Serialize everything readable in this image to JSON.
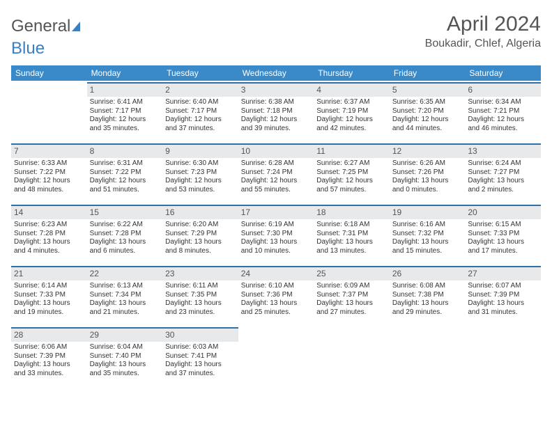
{
  "brand": {
    "part1": "General",
    "part2": "Blue"
  },
  "title": "April 2024",
  "location": "Boukadir, Chlef, Algeria",
  "day_headers": [
    "Sunday",
    "Monday",
    "Tuesday",
    "Wednesday",
    "Thursday",
    "Friday",
    "Saturday"
  ],
  "colors": {
    "header_bg": "#3a8ac9",
    "header_text": "#ffffff",
    "daynum_bg": "#e7e9eb",
    "daynum_border": "#2f6fa8",
    "text": "#333333",
    "title_text": "#555555"
  },
  "weeks": [
    [
      {
        "n": "",
        "empty": true
      },
      {
        "n": "1",
        "sunrise": "Sunrise: 6:41 AM",
        "sunset": "Sunset: 7:17 PM",
        "day1": "Daylight: 12 hours",
        "day2": "and 35 minutes."
      },
      {
        "n": "2",
        "sunrise": "Sunrise: 6:40 AM",
        "sunset": "Sunset: 7:17 PM",
        "day1": "Daylight: 12 hours",
        "day2": "and 37 minutes."
      },
      {
        "n": "3",
        "sunrise": "Sunrise: 6:38 AM",
        "sunset": "Sunset: 7:18 PM",
        "day1": "Daylight: 12 hours",
        "day2": "and 39 minutes."
      },
      {
        "n": "4",
        "sunrise": "Sunrise: 6:37 AM",
        "sunset": "Sunset: 7:19 PM",
        "day1": "Daylight: 12 hours",
        "day2": "and 42 minutes."
      },
      {
        "n": "5",
        "sunrise": "Sunrise: 6:35 AM",
        "sunset": "Sunset: 7:20 PM",
        "day1": "Daylight: 12 hours",
        "day2": "and 44 minutes."
      },
      {
        "n": "6",
        "sunrise": "Sunrise: 6:34 AM",
        "sunset": "Sunset: 7:21 PM",
        "day1": "Daylight: 12 hours",
        "day2": "and 46 minutes."
      }
    ],
    [
      {
        "n": "7",
        "sunrise": "Sunrise: 6:33 AM",
        "sunset": "Sunset: 7:22 PM",
        "day1": "Daylight: 12 hours",
        "day2": "and 48 minutes."
      },
      {
        "n": "8",
        "sunrise": "Sunrise: 6:31 AM",
        "sunset": "Sunset: 7:22 PM",
        "day1": "Daylight: 12 hours",
        "day2": "and 51 minutes."
      },
      {
        "n": "9",
        "sunrise": "Sunrise: 6:30 AM",
        "sunset": "Sunset: 7:23 PM",
        "day1": "Daylight: 12 hours",
        "day2": "and 53 minutes."
      },
      {
        "n": "10",
        "sunrise": "Sunrise: 6:28 AM",
        "sunset": "Sunset: 7:24 PM",
        "day1": "Daylight: 12 hours",
        "day2": "and 55 minutes."
      },
      {
        "n": "11",
        "sunrise": "Sunrise: 6:27 AM",
        "sunset": "Sunset: 7:25 PM",
        "day1": "Daylight: 12 hours",
        "day2": "and 57 minutes."
      },
      {
        "n": "12",
        "sunrise": "Sunrise: 6:26 AM",
        "sunset": "Sunset: 7:26 PM",
        "day1": "Daylight: 13 hours",
        "day2": "and 0 minutes."
      },
      {
        "n": "13",
        "sunrise": "Sunrise: 6:24 AM",
        "sunset": "Sunset: 7:27 PM",
        "day1": "Daylight: 13 hours",
        "day2": "and 2 minutes."
      }
    ],
    [
      {
        "n": "14",
        "sunrise": "Sunrise: 6:23 AM",
        "sunset": "Sunset: 7:28 PM",
        "day1": "Daylight: 13 hours",
        "day2": "and 4 minutes."
      },
      {
        "n": "15",
        "sunrise": "Sunrise: 6:22 AM",
        "sunset": "Sunset: 7:28 PM",
        "day1": "Daylight: 13 hours",
        "day2": "and 6 minutes."
      },
      {
        "n": "16",
        "sunrise": "Sunrise: 6:20 AM",
        "sunset": "Sunset: 7:29 PM",
        "day1": "Daylight: 13 hours",
        "day2": "and 8 minutes."
      },
      {
        "n": "17",
        "sunrise": "Sunrise: 6:19 AM",
        "sunset": "Sunset: 7:30 PM",
        "day1": "Daylight: 13 hours",
        "day2": "and 10 minutes."
      },
      {
        "n": "18",
        "sunrise": "Sunrise: 6:18 AM",
        "sunset": "Sunset: 7:31 PM",
        "day1": "Daylight: 13 hours",
        "day2": "and 13 minutes."
      },
      {
        "n": "19",
        "sunrise": "Sunrise: 6:16 AM",
        "sunset": "Sunset: 7:32 PM",
        "day1": "Daylight: 13 hours",
        "day2": "and 15 minutes."
      },
      {
        "n": "20",
        "sunrise": "Sunrise: 6:15 AM",
        "sunset": "Sunset: 7:33 PM",
        "day1": "Daylight: 13 hours",
        "day2": "and 17 minutes."
      }
    ],
    [
      {
        "n": "21",
        "sunrise": "Sunrise: 6:14 AM",
        "sunset": "Sunset: 7:33 PM",
        "day1": "Daylight: 13 hours",
        "day2": "and 19 minutes."
      },
      {
        "n": "22",
        "sunrise": "Sunrise: 6:13 AM",
        "sunset": "Sunset: 7:34 PM",
        "day1": "Daylight: 13 hours",
        "day2": "and 21 minutes."
      },
      {
        "n": "23",
        "sunrise": "Sunrise: 6:11 AM",
        "sunset": "Sunset: 7:35 PM",
        "day1": "Daylight: 13 hours",
        "day2": "and 23 minutes."
      },
      {
        "n": "24",
        "sunrise": "Sunrise: 6:10 AM",
        "sunset": "Sunset: 7:36 PM",
        "day1": "Daylight: 13 hours",
        "day2": "and 25 minutes."
      },
      {
        "n": "25",
        "sunrise": "Sunrise: 6:09 AM",
        "sunset": "Sunset: 7:37 PM",
        "day1": "Daylight: 13 hours",
        "day2": "and 27 minutes."
      },
      {
        "n": "26",
        "sunrise": "Sunrise: 6:08 AM",
        "sunset": "Sunset: 7:38 PM",
        "day1": "Daylight: 13 hours",
        "day2": "and 29 minutes."
      },
      {
        "n": "27",
        "sunrise": "Sunrise: 6:07 AM",
        "sunset": "Sunset: 7:39 PM",
        "day1": "Daylight: 13 hours",
        "day2": "and 31 minutes."
      }
    ],
    [
      {
        "n": "28",
        "sunrise": "Sunrise: 6:06 AM",
        "sunset": "Sunset: 7:39 PM",
        "day1": "Daylight: 13 hours",
        "day2": "and 33 minutes."
      },
      {
        "n": "29",
        "sunrise": "Sunrise: 6:04 AM",
        "sunset": "Sunset: 7:40 PM",
        "day1": "Daylight: 13 hours",
        "day2": "and 35 minutes."
      },
      {
        "n": "30",
        "sunrise": "Sunrise: 6:03 AM",
        "sunset": "Sunset: 7:41 PM",
        "day1": "Daylight: 13 hours",
        "day2": "and 37 minutes."
      },
      {
        "n": "",
        "empty": true
      },
      {
        "n": "",
        "empty": true
      },
      {
        "n": "",
        "empty": true
      },
      {
        "n": "",
        "empty": true
      }
    ]
  ]
}
